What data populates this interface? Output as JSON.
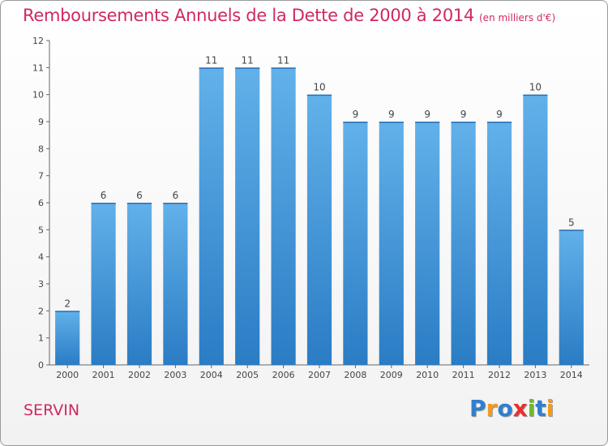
{
  "chart_data": {
    "type": "bar",
    "title": "Remboursements Annuels de la Dette de 2000 à 2014",
    "subtitle": "(en milliers d'€)",
    "categories": [
      "2000",
      "2001",
      "2002",
      "2003",
      "2004",
      "2005",
      "2006",
      "2007",
      "2008",
      "2009",
      "2010",
      "2011",
      "2012",
      "2013",
      "2014"
    ],
    "values": [
      2,
      6,
      6,
      6,
      11,
      11,
      11,
      10,
      9,
      9,
      9,
      9,
      9,
      10,
      5
    ],
    "ylim": [
      0,
      12
    ],
    "yticks": [
      0,
      1,
      2,
      3,
      4,
      5,
      6,
      7,
      8,
      9,
      10,
      11,
      12
    ],
    "grid": false,
    "bar_color": "#3d8fd6",
    "bar_color_light": "#62b1ea"
  },
  "footer": {
    "city": "SERVIN",
    "brand": "Proxiti",
    "brand_letters": [
      {
        "ch": "P",
        "color": "#2f7fd0"
      },
      {
        "ch": "r",
        "color": "#f39a1e"
      },
      {
        "ch": "o",
        "color": "#2f7fd0"
      },
      {
        "ch": "x",
        "color": "#e9302f"
      },
      {
        "ch": "i",
        "color": "#6dbb2a"
      },
      {
        "ch": "t",
        "color": "#2f7fd0"
      },
      {
        "ch": "i",
        "color": "#f39a1e"
      }
    ]
  }
}
